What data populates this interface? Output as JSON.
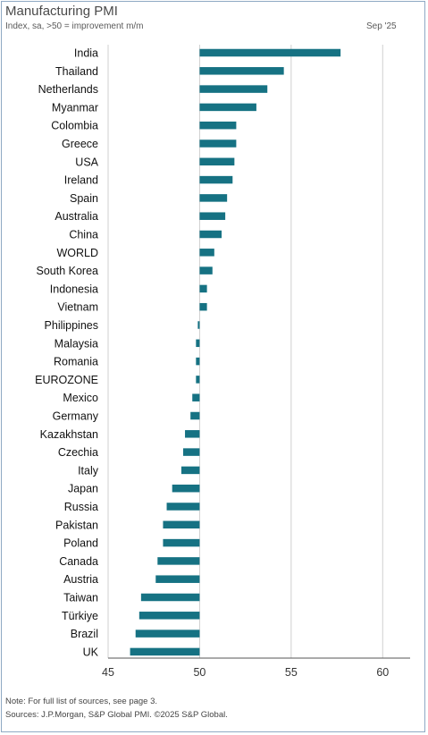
{
  "header": {
    "title": "Manufacturing PMI",
    "subtitle": "Index, sa, >50 = improvement m/m",
    "date": "Sep '25"
  },
  "footer": {
    "note": "Note: For full list of sources, see page 3.",
    "sources": "Sources: J.P.Morgan, S&P Global PMI. ©2025 S&P Global."
  },
  "colors": {
    "bar": "#167283",
    "grid": "#cfcfcf",
    "axis": "#555555",
    "frame": "#8fa9c4"
  },
  "chart_data": {
    "type": "bar",
    "orientation": "horizontal",
    "title": "Manufacturing PMI",
    "subtitle": "Index, sa, >50 = improvement m/m",
    "baseline": 50,
    "xlim": [
      45,
      61.5
    ],
    "xticks": [
      45,
      50,
      55,
      60
    ],
    "grid": "vertical",
    "categories": [
      "India",
      "Thailand",
      "Netherlands",
      "Myanmar",
      "Colombia",
      "Greece",
      "USA",
      "Ireland",
      "Spain",
      "Australia",
      "China",
      "WORLD",
      "South Korea",
      "Indonesia",
      "Vietnam",
      "Philippines",
      "Malaysia",
      "Romania",
      "EUROZONE",
      "Mexico",
      "Germany",
      "Kazakhstan",
      "Czechia",
      "Italy",
      "Japan",
      "Russia",
      "Pakistan",
      "Poland",
      "Canada",
      "Austria",
      "Taiwan",
      "Türkiye",
      "Brazil",
      "UK"
    ],
    "values": [
      57.7,
      54.6,
      53.7,
      53.1,
      52.0,
      52.0,
      51.9,
      51.8,
      51.5,
      51.4,
      51.2,
      50.8,
      50.7,
      50.4,
      50.4,
      49.9,
      49.8,
      49.8,
      49.8,
      49.6,
      49.5,
      49.2,
      49.1,
      49.0,
      48.5,
      48.2,
      48.0,
      48.0,
      47.7,
      47.6,
      46.8,
      46.7,
      46.5,
      46.2
    ]
  }
}
